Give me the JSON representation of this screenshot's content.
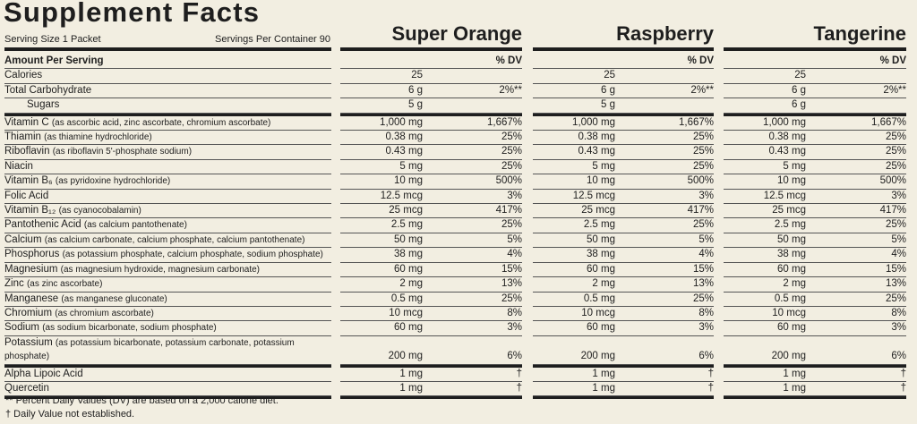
{
  "header": {
    "title": "Supplement Facts",
    "serving_size": "Serving Size 1 Packet",
    "servings_per_container": "Servings Per Container 90"
  },
  "table": {
    "amount_label": "Amount Per Serving",
    "dv_label": "% DV",
    "flavors": [
      "Super Orange",
      "Raspberry",
      "Tangerine"
    ],
    "sections": [
      {
        "rows": [
          {
            "name": "Calories",
            "amounts": [
              {
                "amount": "25"
              },
              {
                "amount": "25"
              },
              {
                "amount": "25"
              }
            ]
          },
          {
            "name": "Total Carbohydrate",
            "amounts": [
              {
                "amount": "6 g",
                "dv": "2%**"
              },
              {
                "amount": "6 g",
                "dv": "2%**"
              },
              {
                "amount": "6 g",
                "dv": "2%**"
              }
            ],
            "sub_rows": [
              {
                "name": "Sugars",
                "amounts": [
                  {
                    "amount": "5 g"
                  },
                  {
                    "amount": "5 g"
                  },
                  {
                    "amount": "6 g"
                  }
                ]
              }
            ]
          }
        ]
      },
      {
        "rows": [
          {
            "name": "Vitamin C",
            "detail": "(as ascorbic acid, zinc ascorbate, chromium ascorbate)",
            "amounts": [
              {
                "amount": "1,000 mg",
                "dv": "1,667%"
              },
              {
                "amount": "1,000 mg",
                "dv": "1,667%"
              },
              {
                "amount": "1,000 mg",
                "dv": "1,667%"
              }
            ]
          },
          {
            "name": "Thiamin",
            "detail": "(as thiamine hydrochloride)",
            "amounts": [
              {
                "amount": "0.38 mg",
                "dv": "25%"
              },
              {
                "amount": "0.38 mg",
                "dv": "25%"
              },
              {
                "amount": "0.38 mg",
                "dv": "25%"
              }
            ]
          },
          {
            "name": "Riboflavin",
            "detail": "(as riboflavin 5'-phosphate sodium)",
            "amounts": [
              {
                "amount": "0.43 mg",
                "dv": "25%"
              },
              {
                "amount": "0.43 mg",
                "dv": "25%"
              },
              {
                "amount": "0.43 mg",
                "dv": "25%"
              }
            ]
          },
          {
            "name": "Niacin",
            "amounts": [
              {
                "amount": "5 mg",
                "dv": "25%"
              },
              {
                "amount": "5 mg",
                "dv": "25%"
              },
              {
                "amount": "5 mg",
                "dv": "25%"
              }
            ]
          },
          {
            "name": "Vitamin B₆",
            "detail": "(as pyridoxine hydrochloride)",
            "amounts": [
              {
                "amount": "10 mg",
                "dv": "500%"
              },
              {
                "amount": "10 mg",
                "dv": "500%"
              },
              {
                "amount": "10 mg",
                "dv": "500%"
              }
            ]
          },
          {
            "name": "Folic Acid",
            "amounts": [
              {
                "amount": "12.5 mcg",
                "dv": "3%"
              },
              {
                "amount": "12.5 mcg",
                "dv": "3%"
              },
              {
                "amount": "12.5 mcg",
                "dv": "3%"
              }
            ]
          },
          {
            "name": "Vitamin B₁₂",
            "detail": "(as cyanocobalamin)",
            "amounts": [
              {
                "amount": "25 mcg",
                "dv": "417%"
              },
              {
                "amount": "25 mcg",
                "dv": "417%"
              },
              {
                "amount": "25 mcg",
                "dv": "417%"
              }
            ]
          },
          {
            "name": "Pantothenic Acid",
            "detail": "(as calcium pantothenate)",
            "amounts": [
              {
                "amount": "2.5 mg",
                "dv": "25%"
              },
              {
                "amount": "2.5 mg",
                "dv": "25%"
              },
              {
                "amount": "2.5 mg",
                "dv": "25%"
              }
            ]
          },
          {
            "name": "Calcium",
            "detail": "(as calcium carbonate, calcium phosphate, calcium pantothenate)",
            "amounts": [
              {
                "amount": "50 mg",
                "dv": "5%"
              },
              {
                "amount": "50 mg",
                "dv": "5%"
              },
              {
                "amount": "50 mg",
                "dv": "5%"
              }
            ]
          },
          {
            "name": "Phosphorus",
            "detail": "(as potassium phosphate, calcium phosphate, sodium phosphate)",
            "amounts": [
              {
                "amount": "38 mg",
                "dv": "4%"
              },
              {
                "amount": "38 mg",
                "dv": "4%"
              },
              {
                "amount": "38 mg",
                "dv": "4%"
              }
            ]
          },
          {
            "name": "Magnesium",
            "detail": "(as magnesium hydroxide, magnesium carbonate)",
            "amounts": [
              {
                "amount": "60 mg",
                "dv": "15%"
              },
              {
                "amount": "60 mg",
                "dv": "15%"
              },
              {
                "amount": "60 mg",
                "dv": "15%"
              }
            ]
          },
          {
            "name": "Zinc",
            "detail": "(as zinc ascorbate)",
            "amounts": [
              {
                "amount": "2 mg",
                "dv": "13%"
              },
              {
                "amount": "2 mg",
                "dv": "13%"
              },
              {
                "amount": "2 mg",
                "dv": "13%"
              }
            ]
          },
          {
            "name": "Manganese",
            "detail": "(as manganese gluconate)",
            "amounts": [
              {
                "amount": "0.5 mg",
                "dv": "25%"
              },
              {
                "amount": "0.5 mg",
                "dv": "25%"
              },
              {
                "amount": "0.5 mg",
                "dv": "25%"
              }
            ]
          },
          {
            "name": "Chromium",
            "detail": "(as chromium ascorbate)",
            "amounts": [
              {
                "amount": "10 mcg",
                "dv": "8%"
              },
              {
                "amount": "10 mcg",
                "dv": "8%"
              },
              {
                "amount": "10 mcg",
                "dv": "8%"
              }
            ]
          },
          {
            "name": "Sodium",
            "detail": "(as sodium bicarbonate, sodium phosphate)",
            "amounts": [
              {
                "amount": "60 mg",
                "dv": "3%"
              },
              {
                "amount": "60 mg",
                "dv": "3%"
              },
              {
                "amount": "60 mg",
                "dv": "3%"
              }
            ]
          },
          {
            "name": "Potassium",
            "detail": "(as potassium bicarbonate, potassium carbonate, potassium phosphate)",
            "amounts": [
              {
                "amount": "200 mg",
                "dv": "6%"
              },
              {
                "amount": "200 mg",
                "dv": "6%"
              },
              {
                "amount": "200 mg",
                "dv": "6%"
              }
            ]
          }
        ]
      },
      {
        "rows": [
          {
            "name": "Alpha Lipoic Acid",
            "amounts": [
              {
                "amount": "1 mg",
                "dv": "†"
              },
              {
                "amount": "1 mg",
                "dv": "†"
              },
              {
                "amount": "1 mg",
                "dv": "†"
              }
            ]
          },
          {
            "name": "Quercetin",
            "amounts": [
              {
                "amount": "1 mg",
                "dv": "†"
              },
              {
                "amount": "1 mg",
                "dv": "†"
              },
              {
                "amount": "1 mg",
                "dv": "†"
              }
            ]
          }
        ]
      }
    ]
  },
  "footnotes": [
    "** Percent Daily Values (DV) are based on a 2,000 calorie diet.",
    "†  Daily Value not established."
  ]
}
